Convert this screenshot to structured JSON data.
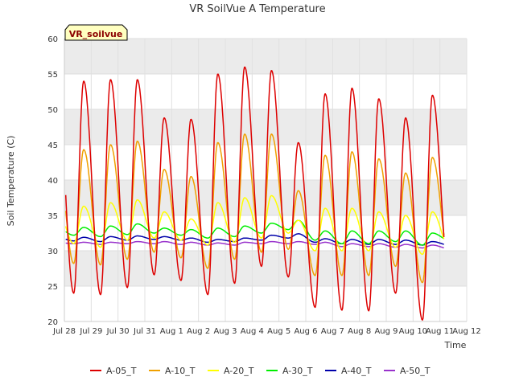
{
  "chart_data": {
    "type": "line",
    "title": "VR SoilVue A Temperature",
    "xlabel": "Time",
    "ylabel": "Soil Temperature (C)",
    "ylim": [
      20,
      60
    ],
    "xlim": [
      0,
      15
    ],
    "grid": true,
    "legend_placement": "bottom",
    "annotation": "VR_soilvue",
    "yticks": [
      20,
      25,
      30,
      35,
      40,
      45,
      50,
      55,
      60
    ],
    "xticks": [
      {
        "x": 0,
        "label": "Jul 28"
      },
      {
        "x": 1,
        "label": "Jul 29"
      },
      {
        "x": 2,
        "label": "Jul 30"
      },
      {
        "x": 3,
        "label": "Jul 31"
      },
      {
        "x": 4,
        "label": "Aug 1"
      },
      {
        "x": 5,
        "label": "Aug 2"
      },
      {
        "x": 6,
        "label": "Aug 3"
      },
      {
        "x": 7,
        "label": "Aug 4"
      },
      {
        "x": 8,
        "label": "Aug 5"
      },
      {
        "x": 9,
        "label": "Aug 6"
      },
      {
        "x": 10,
        "label": "Aug 7"
      },
      {
        "x": 11,
        "label": "Aug 8"
      },
      {
        "x": 12,
        "label": "Aug 9"
      },
      {
        "x": 13,
        "label": "Aug 10"
      },
      {
        "x": 14,
        "label": "Aug 11"
      },
      {
        "x": 15,
        "label": "Aug 12"
      }
    ],
    "days": [
      0,
      1,
      2,
      3,
      4,
      5,
      6,
      7,
      8,
      9,
      10,
      11,
      12,
      13,
      14
    ],
    "series": [
      {
        "name": "A-05_T",
        "color": "#dd0000",
        "min": [
          24.0,
          23.8,
          24.8,
          26.6,
          25.8,
          23.8,
          25.4,
          27.8,
          26.3,
          22.0,
          21.6,
          21.5,
          24.0,
          20.2,
          26.0
        ],
        "max": [
          54.0,
          54.2,
          54.2,
          48.8,
          48.6,
          55.0,
          56.0,
          55.5,
          45.3,
          52.2,
          53.0,
          51.5,
          48.8,
          52.0,
          52.0
        ]
      },
      {
        "name": "A-10_T",
        "color": "#f0a000",
        "min": [
          28.2,
          28.0,
          28.8,
          29.8,
          29.0,
          27.5,
          28.8,
          29.8,
          30.2,
          26.5,
          26.5,
          26.5,
          27.8,
          25.5,
          29.0
        ],
        "max": [
          44.3,
          45.0,
          45.5,
          41.5,
          40.5,
          45.3,
          46.5,
          46.5,
          38.5,
          43.5,
          44.0,
          43.0,
          41.0,
          43.2,
          43.2
        ]
      },
      {
        "name": "A-20_T",
        "color": "#ffff00",
        "min": [
          31.0,
          30.5,
          31.5,
          31.8,
          31.5,
          30.8,
          31.2,
          31.8,
          32.5,
          30.0,
          30.0,
          30.0,
          30.5,
          29.5,
          30.5
        ],
        "max": [
          36.3,
          36.8,
          37.2,
          35.5,
          34.5,
          36.8,
          37.5,
          37.8,
          34.3,
          36.0,
          36.0,
          35.5,
          35.0,
          35.5,
          35.5
        ]
      },
      {
        "name": "A-30_T",
        "color": "#00ee00",
        "min": [
          32.2,
          32.0,
          32.3,
          32.5,
          32.2,
          31.8,
          32.0,
          32.5,
          33.0,
          31.5,
          31.0,
          31.0,
          31.3,
          30.8,
          31.5
        ],
        "max": [
          33.3,
          33.5,
          33.8,
          33.2,
          33.0,
          33.2,
          33.5,
          33.9,
          34.3,
          32.8,
          32.8,
          32.8,
          32.8,
          32.5,
          32.5
        ]
      },
      {
        "name": "A-40_T",
        "color": "#0000aa",
        "min": [
          31.4,
          31.3,
          31.5,
          31.6,
          31.5,
          31.2,
          31.3,
          31.5,
          31.8,
          31.2,
          31.0,
          30.9,
          30.9,
          30.8,
          30.8
        ],
        "max": [
          31.9,
          32.0,
          32.1,
          32.0,
          31.8,
          31.6,
          31.8,
          32.2,
          32.4,
          31.7,
          31.6,
          31.6,
          31.5,
          31.3,
          31.2
        ]
      },
      {
        "name": "A-50_T",
        "color": "#9933cc",
        "min": [
          31.0,
          30.9,
          31.0,
          31.0,
          30.9,
          30.8,
          30.8,
          31.0,
          31.0,
          30.9,
          30.6,
          30.6,
          30.5,
          30.4,
          30.3
        ],
        "max": [
          31.2,
          31.2,
          31.3,
          31.3,
          31.2,
          31.1,
          31.2,
          31.3,
          31.3,
          31.2,
          31.0,
          31.0,
          30.9,
          30.8,
          30.6
        ]
      }
    ]
  }
}
